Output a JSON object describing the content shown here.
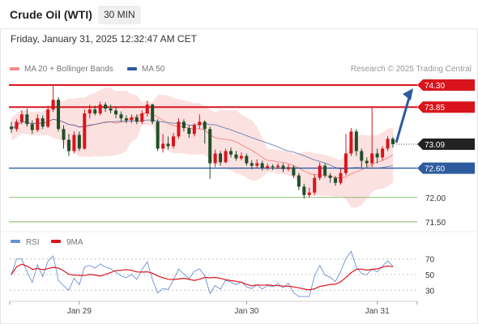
{
  "header": {
    "title": "Crude Oil (WTI)",
    "timeframe": "30 MIN"
  },
  "datetime": "Friday, January 31, 2025 12:32:47 AM CET",
  "legend": {
    "ma20": {
      "label": "MA 20 + Bollinger Bands",
      "color": "#f08c8c"
    },
    "ma50": {
      "label": "MA 50",
      "color": "#2e5b9e"
    }
  },
  "credit": "Research © 2025 Trading Central",
  "colors": {
    "up": "#d9141c",
    "down": "#1f4f26",
    "resistance": "#d9141c",
    "pivot": "#2e5b9e",
    "support": "#6aa84f",
    "arrow": "#2e5b9e",
    "band": "#fcdcdc"
  },
  "chart_data": {
    "type": "candlestick",
    "ylim": [
      71.3,
      74.45
    ],
    "price_ticks": [
      {
        "label": "74.30",
        "value": 74.3,
        "kind": "resistance"
      },
      {
        "label": "73.85",
        "value": 73.85,
        "kind": "resistance"
      },
      {
        "label": "73.09",
        "value": 73.09,
        "kind": "last"
      },
      {
        "label": "72.60",
        "value": 72.6,
        "kind": "pivot"
      },
      {
        "label": "72.00",
        "value": 72.0,
        "kind": "support"
      },
      {
        "label": "71.50",
        "value": 71.5,
        "kind": "support"
      }
    ],
    "x_labels": [
      "Jan 29",
      "Jan 30",
      "Jan 31"
    ],
    "x_label_index": [
      13,
      45,
      70
    ],
    "last_close": 73.09,
    "target": 74.3,
    "candles": [
      [
        73.45,
        73.4,
        73.55,
        73.32
      ],
      [
        73.4,
        73.55,
        73.6,
        73.35
      ],
      [
        73.55,
        73.7,
        73.78,
        73.5
      ],
      [
        73.7,
        73.5,
        73.82,
        73.45
      ],
      [
        73.5,
        73.38,
        73.58,
        73.3
      ],
      [
        73.38,
        73.62,
        73.7,
        73.34
      ],
      [
        73.62,
        73.45,
        73.68,
        73.4
      ],
      [
        73.45,
        73.8,
        73.88,
        73.42
      ],
      [
        73.8,
        74.0,
        74.28,
        73.75
      ],
      [
        74.0,
        73.4,
        74.05,
        73.35
      ],
      [
        73.4,
        73.18,
        73.48,
        73.0
      ],
      [
        73.18,
        72.95,
        73.3,
        72.85
      ],
      [
        72.95,
        73.28,
        73.35,
        72.9
      ],
      [
        73.28,
        73.0,
        73.35,
        72.95
      ],
      [
        73.0,
        73.72,
        73.8,
        72.98
      ],
      [
        73.72,
        73.8,
        73.9,
        73.62
      ],
      [
        73.8,
        73.72,
        73.88,
        73.68
      ],
      [
        73.72,
        73.9,
        73.96,
        73.68
      ],
      [
        73.9,
        73.82,
        73.95,
        73.75
      ],
      [
        73.82,
        73.78,
        73.9,
        73.72
      ],
      [
        73.78,
        73.7,
        73.86,
        73.62
      ],
      [
        73.7,
        73.62,
        73.76,
        73.56
      ],
      [
        73.62,
        73.58,
        73.68,
        73.52
      ],
      [
        73.58,
        73.64,
        73.7,
        73.52
      ],
      [
        73.64,
        73.55,
        73.7,
        73.5
      ],
      [
        73.55,
        73.72,
        73.78,
        73.5
      ],
      [
        73.72,
        73.9,
        73.98,
        73.66
      ],
      [
        73.9,
        73.55,
        73.92,
        73.5
      ],
      [
        73.55,
        73.0,
        73.6,
        72.95
      ],
      [
        73.0,
        73.1,
        73.3,
        72.92
      ],
      [
        73.1,
        73.05,
        73.25,
        72.98
      ],
      [
        73.05,
        73.25,
        73.32,
        73.0
      ],
      [
        73.25,
        73.55,
        73.62,
        73.2
      ],
      [
        73.55,
        73.42,
        73.6,
        73.35
      ],
      [
        73.42,
        73.3,
        73.48,
        73.22
      ],
      [
        73.3,
        73.48,
        73.52,
        73.25
      ],
      [
        73.48,
        73.55,
        73.7,
        73.4
      ],
      [
        73.55,
        73.4,
        73.58,
        73.1
      ],
      [
        73.4,
        72.7,
        73.45,
        72.38
      ],
      [
        72.7,
        72.9,
        72.98,
        72.62
      ],
      [
        72.9,
        72.72,
        72.95,
        72.65
      ],
      [
        72.72,
        72.95,
        73.0,
        72.7
      ],
      [
        72.95,
        72.88,
        73.02,
        72.82
      ],
      [
        72.88,
        72.8,
        72.95,
        72.75
      ],
      [
        72.8,
        72.85,
        72.92,
        72.76
      ],
      [
        72.85,
        72.7,
        72.9,
        72.65
      ],
      [
        72.7,
        72.65,
        72.76,
        72.58
      ],
      [
        72.65,
        72.7,
        72.78,
        72.6
      ],
      [
        72.7,
        72.6,
        72.75,
        72.55
      ],
      [
        72.6,
        72.64,
        72.7,
        72.56
      ],
      [
        72.64,
        72.62,
        72.68,
        72.56
      ],
      [
        72.62,
        72.65,
        72.7,
        72.58
      ],
      [
        72.65,
        72.58,
        72.7,
        72.52
      ],
      [
        72.58,
        72.62,
        72.68,
        72.54
      ],
      [
        72.62,
        72.45,
        72.66,
        72.4
      ],
      [
        72.45,
        72.22,
        72.5,
        72.15
      ],
      [
        72.22,
        72.05,
        72.28,
        71.98
      ],
      [
        72.05,
        72.1,
        72.2,
        72.0
      ],
      [
        72.1,
        72.4,
        72.48,
        72.05
      ],
      [
        72.4,
        72.65,
        72.72,
        72.35
      ],
      [
        72.65,
        72.45,
        72.7,
        72.4
      ],
      [
        72.45,
        72.4,
        72.5,
        72.3
      ],
      [
        72.4,
        72.3,
        72.44,
        72.24
      ],
      [
        72.3,
        72.5,
        72.58,
        72.26
      ],
      [
        72.5,
        72.9,
        73.3,
        72.45
      ],
      [
        72.9,
        73.35,
        73.42,
        72.85
      ],
      [
        73.35,
        72.95,
        73.4,
        72.85
      ],
      [
        72.95,
        72.75,
        73.0,
        72.62
      ],
      [
        72.75,
        72.7,
        72.82,
        72.62
      ],
      [
        72.7,
        72.9,
        73.85,
        72.62
      ],
      [
        72.9,
        72.82,
        73.0,
        72.7
      ],
      [
        72.82,
        73.0,
        73.05,
        72.76
      ],
      [
        73.0,
        73.2,
        73.25,
        72.95
      ],
      [
        73.2,
        73.09,
        73.24,
        73.02
      ]
    ],
    "rsi_ticks": [
      70,
      50,
      30
    ],
    "rsi_legend": [
      {
        "label": "RSI",
        "color": "#6b8fd6"
      },
      {
        "label": "9MA",
        "color": "#d9141c"
      }
    ]
  }
}
